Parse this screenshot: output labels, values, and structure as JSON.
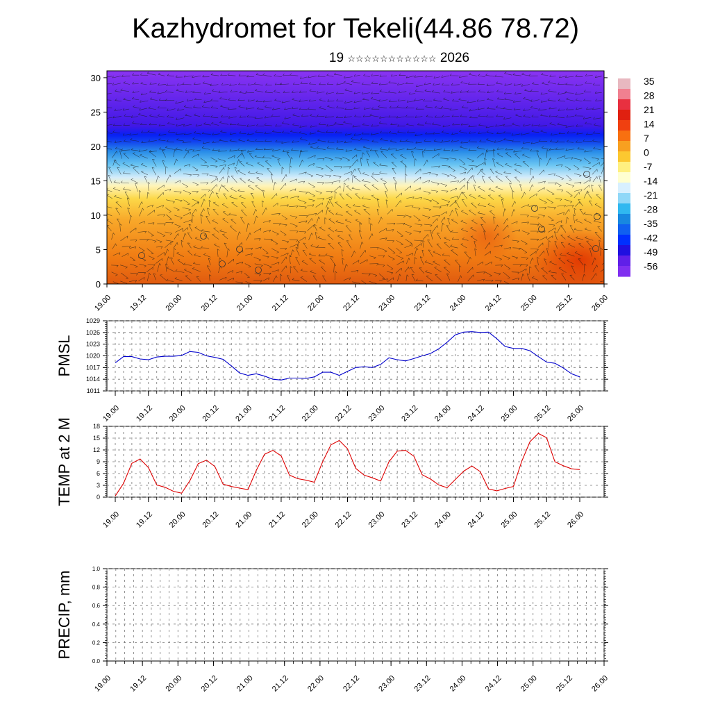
{
  "header": {
    "title": "Kazhydromet for Tekeli(44.86 78.72)",
    "subtitle_day": "19",
    "subtitle_month": "☆☆☆☆☆☆☆☆☆☆☆",
    "subtitle_year": "2026"
  },
  "colors": {
    "pmsl_line": "#0000cc",
    "temp_line": "#dd0000",
    "precip_line": "#000000",
    "colorbar": [
      "#e8b8c0",
      "#f08090",
      "#e83040",
      "#e02010",
      "#f04010",
      "#f87010",
      "#f8a020",
      "#fcc830",
      "#fff080",
      "#ffffd0",
      "#d8f0ff",
      "#90d8f8",
      "#30b8f0",
      "#1888e0",
      "#1060f0",
      "#0030ff",
      "#2010e0",
      "#6020e8",
      "#8030f0"
    ]
  },
  "chart_data": [
    {
      "type": "heatmap",
      "name": "cross-section",
      "x_ticks": [
        "19.00",
        "19.12",
        "20.00",
        "20.12",
        "21.00",
        "21.12",
        "22.00",
        "22.12",
        "23.00",
        "23.12",
        "24.00",
        "24.12",
        "25.00",
        "25.12",
        "26.00"
      ],
      "y_ticks": [
        "0",
        "5",
        "10",
        "15",
        "20",
        "25",
        "30"
      ],
      "ylim": [
        0,
        31
      ],
      "colorbar_labels": [
        "35",
        "28",
        "21",
        "14",
        "7",
        "0",
        "-7",
        "-14",
        "-21",
        "-28",
        "-35",
        "-42",
        "-49",
        "-56"
      ]
    },
    {
      "type": "line",
      "ylabel": "PMSL",
      "x_ticks": [
        "19.00",
        "19.12",
        "20.00",
        "20.12",
        "21.00",
        "21.12",
        "22.00",
        "22.12",
        "23.00",
        "23.12",
        "24.00",
        "24.12",
        "25.00",
        "25.12",
        "26.00"
      ],
      "y_ticks": [
        "1011",
        "1014",
        "1017",
        "1020",
        "1023",
        "1026",
        "1029"
      ],
      "ylim": [
        1011,
        1029
      ],
      "values": [
        1018.2,
        1019.8,
        1019.8,
        1019.2,
        1019.0,
        1019.7,
        1019.9,
        1019.9,
        1020.1,
        1021.1,
        1020.9,
        1020.0,
        1019.6,
        1019.1,
        1017.4,
        1015.6,
        1015.0,
        1015.4,
        1014.8,
        1014.0,
        1013.8,
        1014.3,
        1014.3,
        1014.2,
        1014.6,
        1015.8,
        1015.8,
        1015.0,
        1016.0,
        1017.0,
        1017.2,
        1017.0,
        1017.8,
        1019.5,
        1019.0,
        1018.7,
        1019.3,
        1020.0,
        1020.6,
        1021.8,
        1023.5,
        1025.4,
        1026.1,
        1026.2,
        1026.0,
        1026.1,
        1024.4,
        1022.4,
        1021.9,
        1021.9,
        1021.3,
        1019.8,
        1018.4,
        1018.1,
        1016.9,
        1015.4,
        1014.6
      ]
    },
    {
      "type": "line",
      "ylabel": "TEMP at 2 M",
      "x_ticks": [
        "19.00",
        "19.12",
        "20.00",
        "20.12",
        "21.00",
        "21.12",
        "22.00",
        "22.12",
        "23.00",
        "23.12",
        "24.00",
        "24.12",
        "25.00",
        "25.12",
        "26.00"
      ],
      "y_ticks": [
        "0",
        "3",
        "6",
        "9",
        "12",
        "15",
        "18"
      ],
      "ylim": [
        0,
        18
      ],
      "values": [
        0.3,
        3.5,
        8.6,
        9.7,
        7.5,
        3.1,
        2.5,
        1.5,
        1.0,
        4.2,
        8.5,
        9.4,
        7.8,
        3.3,
        2.7,
        2.3,
        1.9,
        6.8,
        10.9,
        11.9,
        10.5,
        5.6,
        4.7,
        4.3,
        3.8,
        9.0,
        13.3,
        14.4,
        12.3,
        7.3,
        5.6,
        4.9,
        4.1,
        9.0,
        11.7,
        11.9,
        10.4,
        5.7,
        4.6,
        3.1,
        2.4,
        4.5,
        6.6,
        7.9,
        6.5,
        2.1,
        1.6,
        2.2,
        2.7,
        9.1,
        14.1,
        16.2,
        15.1,
        9.0,
        8.0,
        7.2,
        7.0
      ]
    },
    {
      "type": "line",
      "ylabel": "PRECIP, mm",
      "x_ticks": [
        "19.00",
        "19.12",
        "20.00",
        "20.12",
        "21.00",
        "21.12",
        "22.00",
        "22.12",
        "23.00",
        "23.12",
        "24.00",
        "24.12",
        "25.00",
        "25.12",
        "26.00"
      ],
      "y_ticks": [
        "0.0",
        "0.2",
        "0.4",
        "0.6",
        "0.8",
        "1.0"
      ],
      "ylim": [
        0,
        1
      ],
      "values": [
        0,
        0,
        0,
        0,
        0,
        0,
        0,
        0,
        0,
        0,
        0,
        0,
        0,
        0,
        0,
        0,
        0,
        0,
        0,
        0,
        0,
        0,
        0,
        0,
        0,
        0,
        0,
        0,
        0,
        0,
        0,
        0,
        0,
        0,
        0,
        0,
        0,
        0,
        0,
        0,
        0,
        0,
        0,
        0,
        0,
        0,
        0,
        0,
        0,
        0,
        0,
        0,
        0,
        0,
        0,
        0,
        0
      ]
    }
  ]
}
